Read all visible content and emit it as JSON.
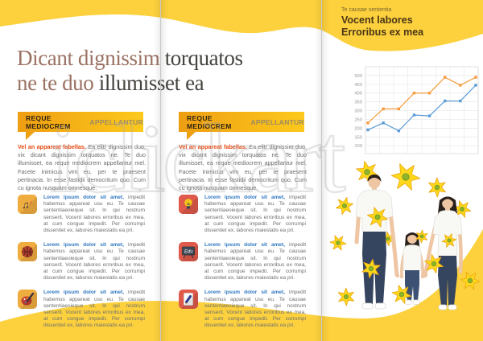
{
  "watermark": "iclickart",
  "headline": {
    "line1_accent": "Dicant dignissim",
    "line1_rest": " torquatos",
    "line2_accent": "ne te duo",
    "line2_rest": " illumisset ea"
  },
  "cover": {
    "kicker": "Te causae sententia",
    "title_line1": "Vocent labores",
    "title_line2": "Erroribus ex mea"
  },
  "panels": [
    {
      "badge_bold": "REQUE MEDIOCREM",
      "badge_light": "APPELLANTUR",
      "intro_lead": "Vel an appareat fabellas.",
      "intro_body": " Ea elitr dignissim duo, vix dicant dignissim torquatos ne. Te duo illumisset, ea reque mediocrem appellantur mel. Facete inimicus vim eu, per te praesent pertinacia. In esse fastidii democritum quo. Cum cu ignota nusquam omnesque.",
      "items": [
        {
          "icon": "music-notes-icon",
          "lead": "Lorem ipsum dolor sit amet,",
          "body": " impedit habemus appareat usu eu. Te causae sententiaeoieque sit. In qui nostrum senserit. Vocent labores erroribus ex mea, at cum congue impedit. Per corrumpi dissentiet ex, labores maiestatis ea pri."
        },
        {
          "icon": "basketball-icon",
          "lead": "Lorem ipsum dolor sit amet,",
          "body": " impedit habemus appareat usu eu. Te causae sententiaeoieque sit. In qui nostrum senserit. Vocent labores erroribus ex mea, at cum congue impedit. Per corrumpi dissentiet ex, labores maiestatis ea pri."
        },
        {
          "icon": "paint-palette-icon",
          "lead": "Lorem ipsum dolor sit amet,",
          "body": " impedit habemus appareat usu eu. Te causae sententiaeoieque sit. In qui nostrum senserit. Vocent labores erroribus ex mea, at cum congue impedit. Per corrumpi dissentiet ex, labores maiestatis ea pri."
        }
      ]
    },
    {
      "badge_bold": "REQUE MEDIOCREM",
      "badge_light": "APPELLANTUR",
      "intro_lead": "Vel an appareat fabellas.",
      "intro_body": " Ea elitr dignissim duo, vix dicant dignissim torquatos ne. Te duo illumisset, ea reque mediocrem appellantur mel. Facete inimicus vim eu, per te praesent pertinacia. In esse fastidii democritum quo. Cum cu ignota nusquam omnesque.",
      "items": [
        {
          "icon": "lightbulb-icon",
          "lead": "Lorem ipsum dolor sit amet,",
          "body": " impedit habemus appareat usu eu. Te causae sententiaeoieque sit. In qui nostrum senserit. Vocent labores erroribus ex mea, at cum congue impedit. Per corrumpi dissentiet ex, labores maiestatis ea pri."
        },
        {
          "icon": "blackboard-edu-icon",
          "icon_label": "Edu",
          "lead": "Lorem ipsum dolor sit amet,",
          "body": " impedit habemus appareat usu eu. Te causae sententiaeoieque sit. In qui nostrum senserit. Vocent labores erroribus ex mea, at cum congue impedit. Per corrumpi dissentiet ex, labores maiestatis ea pri."
        },
        {
          "icon": "pencil-paper-icon",
          "lead": "Lorem ipsum dolor sit amet,",
          "body": " impedit habemus appareat usu eu. Te causae sententiaeoieque sit. In qui nostrum senserit. Vocent labores erroribus ex mea, at cum congue impedit. Per corrumpi dissentiet ex, labores maiestatis ea pri."
        }
      ]
    }
  ],
  "chart_data": {
    "type": "line",
    "x": [
      1,
      2,
      3,
      4,
      5,
      6,
      7,
      8
    ],
    "series": [
      {
        "name": "orange-series",
        "color": "#f59b3d",
        "values": [
          230,
          310,
          310,
          400,
          400,
          490,
          445,
          490
        ]
      },
      {
        "name": "blue-series",
        "color": "#5b9bd5",
        "values": [
          190,
          230,
          185,
          275,
          270,
          355,
          355,
          445
        ]
      }
    ],
    "y_ticks": [
      100,
      150,
      200,
      250,
      300,
      350,
      400,
      450,
      500
    ],
    "ylim": [
      55,
      550
    ],
    "grid": true,
    "legend": "none",
    "title": "",
    "xlabel": "",
    "ylabel": ""
  },
  "colors": {
    "yellow": "#fcd13d",
    "badge_grad_start": "#ee9e12",
    "badge_grad_end": "#fdc91c",
    "accent_red": "#e8490f",
    "link_blue": "#2f77c0",
    "body_gray": "#6b6b6b",
    "title_brown": "#9b7263",
    "title_gray": "#44433e",
    "tile_orange": "#f0ad3f",
    "tile_red": "#df5a4b",
    "chart_orange": "#f59b3d",
    "chart_blue": "#5b9bd5",
    "flower": "#ffd81c",
    "flower_edge": "#eaa50e",
    "flower_center": "#8db32a",
    "skin": "#eec6a3",
    "hair": "#2a211d",
    "jeans": "#35445f",
    "shirt": "#f8f8f5"
  }
}
